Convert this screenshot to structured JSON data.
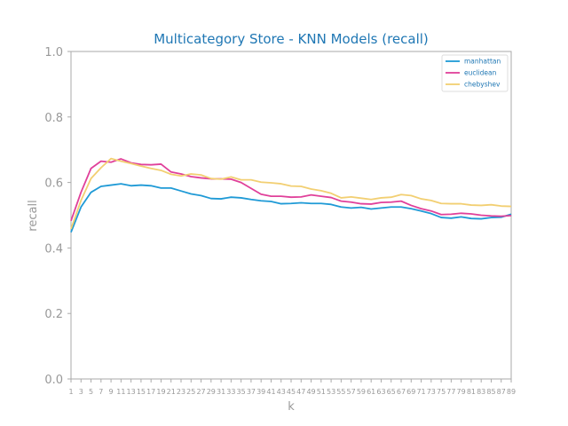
{
  "chart_data": {
    "type": "line",
    "title": "Multicategory Store - KNN Models (recall)",
    "xlabel": "k",
    "ylabel": "recall",
    "ylim": [
      0,
      1.0
    ],
    "xlim": [
      1,
      89
    ],
    "yticks": [
      "0.0",
      "0.2",
      "0.4",
      "0.6",
      "0.8",
      "1.0"
    ],
    "ytick_values": [
      0,
      0.2,
      0.4,
      0.6,
      0.8,
      1.0
    ],
    "x": [
      1,
      3,
      5,
      7,
      9,
      11,
      13,
      15,
      17,
      19,
      21,
      23,
      25,
      27,
      29,
      31,
      33,
      35,
      37,
      39,
      41,
      43,
      45,
      47,
      49,
      51,
      53,
      55,
      57,
      59,
      61,
      63,
      65,
      67,
      69,
      71,
      73,
      75,
      77,
      79,
      81,
      83,
      85,
      87,
      89
    ],
    "grid": false,
    "legend_position": "top-right",
    "series": [
      {
        "name": "manhattan",
        "color": "#1f9ad6",
        "values": [
          0.448,
          0.525,
          0.57,
          0.588,
          0.592,
          0.596,
          0.59,
          0.592,
          0.59,
          0.583,
          0.583,
          0.574,
          0.565,
          0.56,
          0.551,
          0.55,
          0.555,
          0.553,
          0.548,
          0.544,
          0.542,
          0.535,
          0.536,
          0.538,
          0.536,
          0.536,
          0.533,
          0.525,
          0.522,
          0.524,
          0.519,
          0.522,
          0.525,
          0.525,
          0.52,
          0.513,
          0.505,
          0.493,
          0.491,
          0.495,
          0.49,
          0.489,
          0.493,
          0.494,
          0.503
        ]
      },
      {
        "name": "euclidean",
        "color": "#e0409a",
        "values": [
          0.483,
          0.57,
          0.643,
          0.665,
          0.662,
          0.672,
          0.66,
          0.655,
          0.654,
          0.656,
          0.632,
          0.626,
          0.618,
          0.614,
          0.611,
          0.611,
          0.61,
          0.6,
          0.582,
          0.564,
          0.558,
          0.558,
          0.555,
          0.556,
          0.562,
          0.558,
          0.554,
          0.543,
          0.54,
          0.535,
          0.534,
          0.539,
          0.54,
          0.543,
          0.53,
          0.52,
          0.513,
          0.502,
          0.503,
          0.506,
          0.504,
          0.5,
          0.498,
          0.497,
          0.499
        ]
      },
      {
        "name": "chebyshev",
        "color": "#f2cf72",
        "values": [
          0.458,
          0.545,
          0.612,
          0.645,
          0.673,
          0.665,
          0.658,
          0.65,
          0.643,
          0.637,
          0.625,
          0.62,
          0.626,
          0.623,
          0.612,
          0.61,
          0.617,
          0.608,
          0.608,
          0.601,
          0.599,
          0.596,
          0.589,
          0.588,
          0.58,
          0.575,
          0.567,
          0.553,
          0.556,
          0.552,
          0.548,
          0.553,
          0.555,
          0.563,
          0.56,
          0.55,
          0.545,
          0.536,
          0.535,
          0.535,
          0.531,
          0.53,
          0.532,
          0.528,
          0.527
        ]
      }
    ]
  }
}
